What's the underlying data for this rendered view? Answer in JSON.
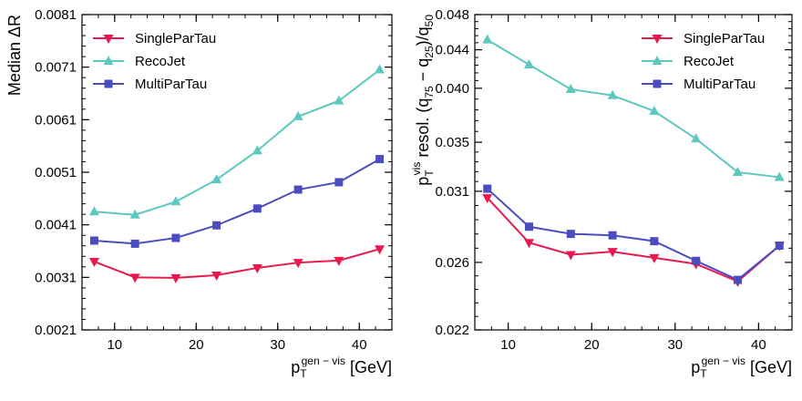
{
  "colors": {
    "SinglePartTau": "#e8194f",
    "RecoJet": "#5cc8bf",
    "MultiParTau": "#4b4dbf"
  },
  "chart_data": [
    {
      "type": "line",
      "ylabel": "Median ΔR",
      "xlabel_main": "p",
      "xlabel_sub": "T",
      "xlabel_sup": "gen − vis",
      "xlabel_unit": "[GeV]",
      "xlim": [
        6,
        44
      ],
      "ylim": [
        0.0021,
        0.0081
      ],
      "x_ticks": [
        10,
        20,
        30,
        40
      ],
      "y_ticks": [
        0.0021,
        0.0031,
        0.0041,
        0.0051,
        0.0061,
        0.0071,
        0.0081
      ],
      "y_tick_labels": [
        "0.0021",
        "0.0031",
        "0.0041",
        "0.0051",
        "0.0061",
        "0.0071",
        "0.0081"
      ],
      "x": [
        7.5,
        12.5,
        17.5,
        22.5,
        27.5,
        32.5,
        37.5,
        42.5
      ],
      "legend_position": "top-left",
      "series": [
        {
          "name": "SingleParTau",
          "marker": "triangle-down",
          "color_key": "SinglePartTau",
          "values": [
            0.0034,
            0.0031,
            0.00309,
            0.00314,
            0.00328,
            0.00338,
            0.00342,
            0.00364
          ]
        },
        {
          "name": "RecoJet",
          "marker": "triangle-up",
          "color_key": "RecoJet",
          "values": [
            0.00435,
            0.00429,
            0.00454,
            0.00496,
            0.00551,
            0.00616,
            0.00646,
            0.00705
          ]
        },
        {
          "name": "MultiParTau",
          "marker": "square",
          "color_key": "MultiParTau",
          "values": [
            0.0038,
            0.00374,
            0.00385,
            0.00409,
            0.00441,
            0.00477,
            0.00491,
            0.00535
          ]
        }
      ]
    },
    {
      "type": "line",
      "ylabel_main": "p",
      "ylabel_sub": "T",
      "ylabel_sup": "vis",
      "ylabel_rest": " resol. (q",
      "ylabel_q75": "75",
      "ylabel_mid": " − q",
      "ylabel_q25": "25",
      "ylabel_close": ")/q",
      "ylabel_q50": "50",
      "xlabel_main": "p",
      "xlabel_sub": "T",
      "xlabel_sup": "gen − vis",
      "xlabel_unit": "[GeV]",
      "xlim": [
        6,
        44
      ],
      "y_scale": "log",
      "ylim": [
        0.022,
        0.048
      ],
      "x_ticks": [
        10,
        20,
        30,
        40
      ],
      "y_ticks": [
        0.022,
        0.026,
        0.031,
        0.035,
        0.04,
        0.044,
        0.048
      ],
      "y_tick_labels": [
        "0.022",
        "0.026",
        "0.031",
        "0.035",
        "0.040",
        "0.044",
        "0.048"
      ],
      "x": [
        7.5,
        12.5,
        17.5,
        22.5,
        27.5,
        32.5,
        37.5,
        42.5
      ],
      "legend_position": "top-right",
      "series": [
        {
          "name": "SingleParTau",
          "marker": "triangle-down",
          "color_key": "SinglePartTau",
          "values": [
            0.0305,
            0.0273,
            0.0265,
            0.0267,
            0.0263,
            0.0259,
            0.0248,
            0.0271
          ]
        },
        {
          "name": "RecoJet",
          "marker": "triangle-up",
          "color_key": "RecoJet",
          "values": [
            0.0451,
            0.0424,
            0.0399,
            0.0393,
            0.0378,
            0.0353,
            0.0325,
            0.0321
          ]
        },
        {
          "name": "MultiParTau",
          "marker": "square",
          "color_key": "MultiParTau",
          "values": [
            0.0312,
            0.0284,
            0.0279,
            0.0278,
            0.0274,
            0.0261,
            0.0249,
            0.0271
          ]
        }
      ]
    }
  ]
}
